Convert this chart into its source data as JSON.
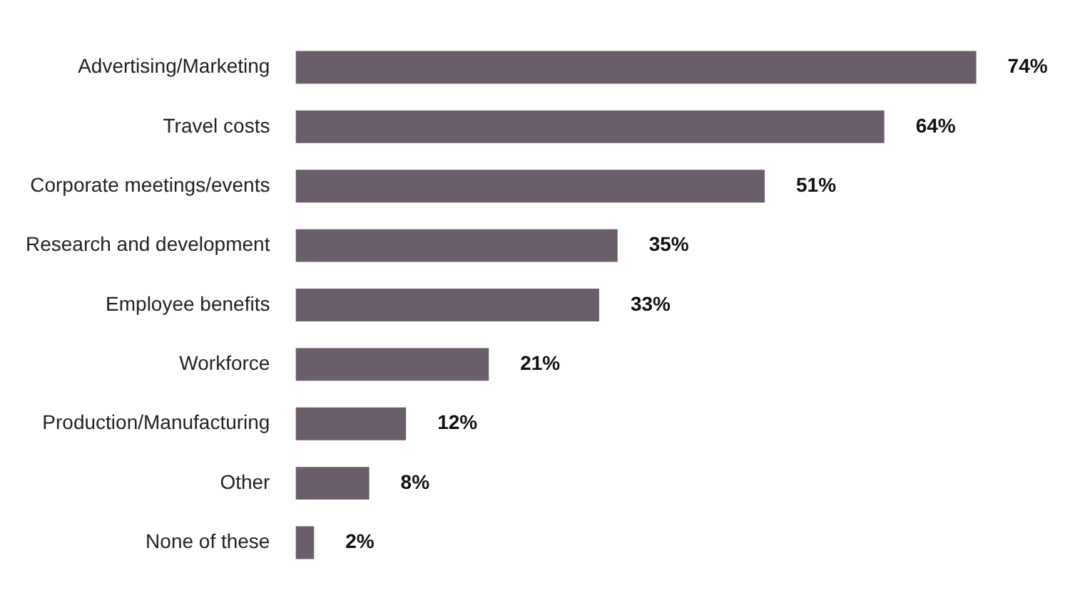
{
  "chart_data": {
    "type": "bar",
    "orientation": "horizontal",
    "categories": [
      "Advertising/Marketing",
      "Travel costs",
      "Corporate meetings/events",
      "Research and development",
      "Employee benefits",
      "Workforce",
      "Production/Manufacturing",
      "Other",
      "None of these"
    ],
    "values": [
      74,
      64,
      51,
      35,
      33,
      21,
      12,
      8,
      2
    ],
    "value_labels": [
      "74%",
      "64%",
      "51%",
      "35%",
      "33%",
      "21%",
      "12%",
      "8%",
      "2%"
    ],
    "color": "#6b5e6b",
    "legend": false,
    "tick_labels": "y"
  }
}
